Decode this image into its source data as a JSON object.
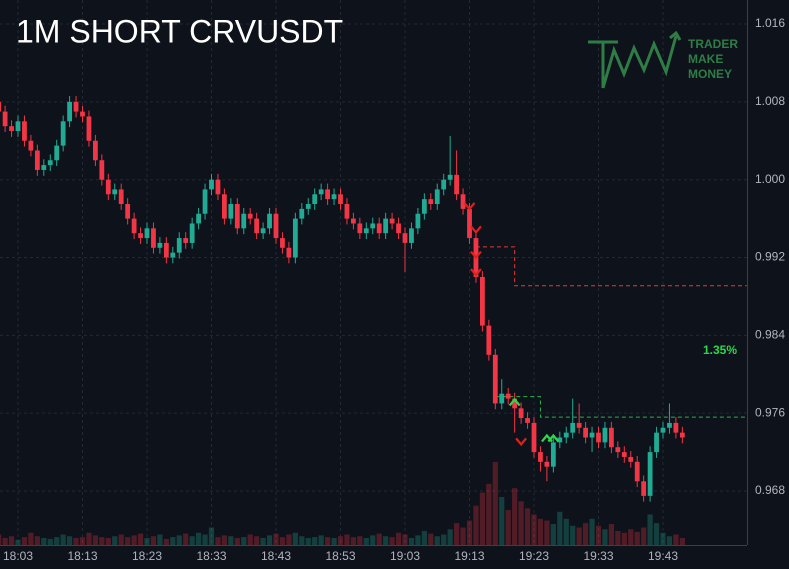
{
  "chart_data": {
    "type": "candlestick",
    "title": "1M SHORT CRVUSDT",
    "logo": [
      "TRADER",
      "MAKE",
      "MONEY"
    ],
    "up_color": "#22ab94",
    "down_color": "#f23645",
    "categories": [
      null,
      null,
      null,
      "18:03",
      null,
      null,
      null,
      null,
      null,
      null,
      null,
      null,
      null,
      "18:13",
      null,
      null,
      null,
      null,
      null,
      null,
      null,
      null,
      null,
      "18:23",
      null,
      null,
      null,
      null,
      null,
      null,
      null,
      null,
      null,
      "18:33",
      null,
      null,
      null,
      null,
      null,
      null,
      null,
      null,
      null,
      "18:43",
      null,
      null,
      null,
      null,
      null,
      null,
      null,
      null,
      null,
      "18:53",
      null,
      null,
      null,
      null,
      null,
      null,
      null,
      null,
      null,
      "19:03",
      null,
      null,
      null,
      null,
      null,
      null,
      null,
      null,
      null,
      "19:13",
      null,
      null,
      null,
      null,
      null,
      null,
      null,
      null,
      null,
      "19:23",
      null,
      null,
      null,
      null,
      null,
      null,
      null,
      null,
      null,
      "19:33",
      null,
      null,
      null,
      null,
      null,
      null,
      null,
      null,
      null,
      "19:43",
      null,
      null,
      null
    ],
    "open": [
      1.008,
      1.007,
      1.0055,
      1.005,
      1.006,
      1.004,
      1.003,
      1.001,
      1.0015,
      1.002,
      1.0035,
      1.006,
      1.008,
      1.007,
      1.0065,
      1.004,
      1.002,
      1.0,
      0.9985,
      0.999,
      0.9975,
      0.996,
      0.9945,
      0.994,
      0.995,
      0.993,
      0.9935,
      0.992,
      0.9925,
      0.994,
      0.9935,
      0.9955,
      0.9965,
      0.999,
      1.0,
      0.9985,
      0.996,
      0.9975,
      0.995,
      0.9965,
      0.996,
      0.9945,
      0.995,
      0.9965,
      0.994,
      0.993,
      0.992,
      0.996,
      0.997,
      0.9975,
      0.9985,
      0.999,
      0.998,
      0.9985,
      0.9975,
      0.996,
      0.9955,
      0.9945,
      0.995,
      0.9955,
      0.9945,
      0.996,
      0.9955,
      0.9945,
      0.9935,
      0.995,
      0.9965,
      0.998,
      0.9975,
      0.999,
      1.0,
      1.0005,
      0.9985,
      0.997,
      0.994,
      0.99,
      0.985,
      0.982,
      0.977,
      0.978,
      0.9775,
      0.9765,
      0.9755,
      0.975,
      0.972,
      0.971,
      0.9705,
      0.973,
      0.9735,
      0.974,
      0.975,
      0.9745,
      0.9735,
      0.974,
      0.973,
      0.9745,
      0.9725,
      0.972,
      0.9715,
      0.971,
      0.969,
      0.9675,
      0.972,
      0.974,
      0.9745,
      0.975,
      0.974
    ],
    "close": [
      1.007,
      1.0055,
      1.005,
      1.006,
      1.004,
      1.003,
      1.001,
      1.0015,
      1.002,
      1.0035,
      1.006,
      1.008,
      1.007,
      1.0065,
      1.004,
      1.002,
      1.0,
      0.9985,
      0.999,
      0.9975,
      0.996,
      0.9945,
      0.994,
      0.995,
      0.993,
      0.9935,
      0.992,
      0.9925,
      0.994,
      0.9935,
      0.9955,
      0.9965,
      0.999,
      1.0,
      0.9985,
      0.996,
      0.9975,
      0.995,
      0.9965,
      0.996,
      0.9945,
      0.995,
      0.9965,
      0.994,
      0.993,
      0.992,
      0.996,
      0.997,
      0.9975,
      0.9985,
      0.999,
      0.998,
      0.9985,
      0.9975,
      0.996,
      0.9955,
      0.9945,
      0.995,
      0.9955,
      0.9945,
      0.996,
      0.9955,
      0.9945,
      0.9935,
      0.995,
      0.9965,
      0.998,
      0.9975,
      0.999,
      1.0,
      1.0005,
      0.9985,
      0.997,
      0.994,
      0.99,
      0.985,
      0.982,
      0.977,
      0.978,
      0.9775,
      0.9765,
      0.9755,
      0.975,
      0.972,
      0.971,
      0.9705,
      0.973,
      0.9735,
      0.974,
      0.975,
      0.9745,
      0.9735,
      0.974,
      0.973,
      0.9745,
      0.9725,
      0.972,
      0.9715,
      0.971,
      0.969,
      0.9675,
      0.972,
      0.974,
      0.9745,
      0.975,
      0.974,
      0.9735
    ],
    "high": [
      1.0086,
      1.0076,
      1.0061,
      1.0066,
      1.0066,
      1.0046,
      1.0036,
      1.0021,
      1.0026,
      1.0041,
      1.0066,
      1.0086,
      1.0086,
      1.0076,
      1.0071,
      1.0046,
      1.0026,
      1.0006,
      0.9996,
      0.9996,
      0.9981,
      0.9966,
      0.9951,
      0.9956,
      0.9956,
      0.9941,
      0.9941,
      0.9931,
      0.9946,
      0.9946,
      0.9961,
      0.9971,
      0.9996,
      1.0006,
      1.0006,
      0.9991,
      0.9981,
      0.9981,
      0.9971,
      0.9971,
      0.9966,
      0.9956,
      0.9971,
      0.9971,
      0.9946,
      0.9936,
      0.9966,
      0.9976,
      0.9981,
      0.9991,
      0.9996,
      0.9996,
      0.9991,
      0.9991,
      0.9981,
      0.9966,
      0.9961,
      0.9956,
      0.9961,
      0.9961,
      0.9966,
      0.9966,
      0.9961,
      0.9951,
      0.9956,
      0.9971,
      0.9986,
      0.9986,
      0.9996,
      1.0006,
      1.0045,
      1.003,
      0.9991,
      0.9976,
      0.9946,
      0.9906,
      0.9856,
      0.9826,
      0.9795,
      0.9786,
      0.9781,
      0.9771,
      0.9761,
      0.9756,
      0.9726,
      0.9716,
      0.9736,
      0.9741,
      0.9746,
      0.9775,
      0.977,
      0.9751,
      0.9746,
      0.9746,
      0.9751,
      0.9751,
      0.9731,
      0.9726,
      0.9721,
      0.9716,
      0.9696,
      0.9726,
      0.9746,
      0.9751,
      0.977,
      0.9756,
      0.9746
    ],
    "low": [
      1.0064,
      1.0049,
      1.0044,
      1.0044,
      1.0034,
      1.0024,
      1.0004,
      1.0004,
      1.0009,
      1.0014,
      1.0029,
      1.0054,
      1.0064,
      1.0059,
      1.0034,
      1.0014,
      0.9994,
      0.9979,
      0.9979,
      0.9969,
      0.9954,
      0.9939,
      0.9934,
      0.9934,
      0.9924,
      0.9924,
      0.9914,
      0.9914,
      0.9919,
      0.9929,
      0.9929,
      0.9949,
      0.9959,
      0.9984,
      0.9979,
      0.9954,
      0.9954,
      0.9944,
      0.9944,
      0.9954,
      0.9939,
      0.9939,
      0.9944,
      0.9934,
      0.9924,
      0.9914,
      0.9914,
      0.9954,
      0.9964,
      0.9969,
      0.9979,
      0.9974,
      0.9974,
      0.9969,
      0.9954,
      0.9949,
      0.9939,
      0.9939,
      0.9944,
      0.9939,
      0.9939,
      0.9949,
      0.9939,
      0.9905,
      0.9929,
      0.9944,
      0.9959,
      0.9969,
      0.9969,
      0.9984,
      0.9994,
      0.9979,
      0.9964,
      0.9934,
      0.9894,
      0.9844,
      0.9814,
      0.9764,
      0.9764,
      0.9769,
      0.974,
      0.9749,
      0.9744,
      0.9714,
      0.97,
      0.969,
      0.9699,
      0.9724,
      0.9729,
      0.9734,
      0.9739,
      0.9729,
      0.972,
      0.9724,
      0.9724,
      0.9719,
      0.9714,
      0.9709,
      0.9704,
      0.9684,
      0.9669,
      0.9669,
      0.9714,
      0.9734,
      0.9739,
      0.9734,
      0.9729
    ],
    "volume": [
      12,
      8,
      10,
      6,
      9,
      14,
      10,
      8,
      7,
      9,
      12,
      10,
      8,
      9,
      14,
      11,
      9,
      8,
      10,
      12,
      9,
      11,
      13,
      8,
      10,
      12,
      7,
      9,
      11,
      13,
      10,
      14,
      12,
      20,
      9,
      11,
      10,
      8,
      9,
      12,
      10,
      8,
      11,
      13,
      9,
      12,
      14,
      10,
      8,
      9,
      11,
      9,
      8,
      10,
      12,
      9,
      10,
      8,
      11,
      13,
      10,
      9,
      14,
      12,
      8,
      11,
      16,
      13,
      10,
      12,
      18,
      25,
      20,
      28,
      45,
      60,
      70,
      95,
      55,
      40,
      65,
      50,
      42,
      35,
      30,
      28,
      24,
      38,
      30,
      22,
      20,
      25,
      30,
      22,
      18,
      24,
      16,
      14,
      18,
      15,
      20,
      35,
      25,
      14,
      10,
      12,
      8
    ],
    "ylim": [
      0.96245,
      1.01847
    ],
    "yticks": [
      0.968,
      0.976,
      0.984,
      0.992,
      {
        "value": 1.0,
        "label": "1.000"
      },
      1.008,
      1.016
    ],
    "grid": true,
    "sell_signals": [
      {
        "x": "19:13",
        "y": 0.9972
      },
      {
        "x": "19:14",
        "y": 0.9948
      },
      {
        "x": "19:14",
        "y": 0.9922
      },
      {
        "x": "19:14",
        "y": 0.9904
      },
      {
        "x": "19:21",
        "y": 0.973
      }
    ],
    "buy_signals": [
      {
        "x": "19:20",
        "y": 0.9772
      },
      {
        "x": "19:25",
        "y": 0.9735
      },
      {
        "x": "19:26",
        "y": 0.9735
      }
    ],
    "stop_line": {
      "color": "#e53935",
      "points": [
        [
          "19:14",
          0.9931
        ],
        [
          "19:20",
          0.9931
        ],
        [
          "19:20",
          0.9891
        ],
        [
          "19:56",
          0.9891
        ]
      ]
    },
    "target_line": {
      "color": "#2bb24c",
      "points": [
        [
          "19:17",
          0.9777
        ],
        [
          "19:24",
          0.9777
        ],
        [
          "19:24",
          0.9756
        ],
        [
          "19:56",
          0.9756
        ]
      ]
    },
    "annotation": {
      "text": "1.35%",
      "y": 0.9824,
      "color": "#2bd94a"
    }
  }
}
